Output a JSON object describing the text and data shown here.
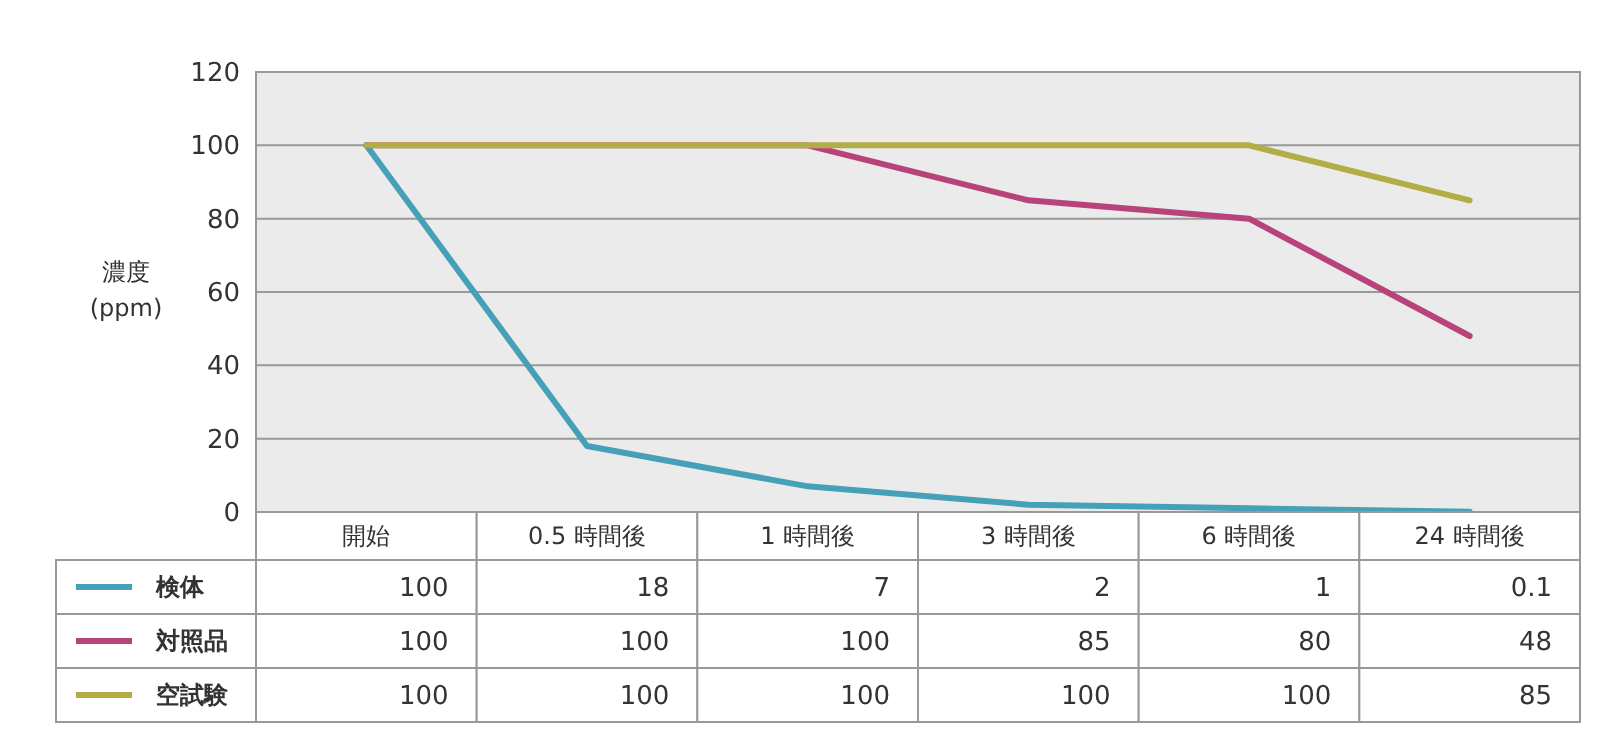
{
  "chart_data": {
    "type": "line",
    "ylabel": "濃度\n(ppm)",
    "categories": [
      "開始",
      "0.5 時間後",
      "1 時間後",
      "3 時間後",
      "6 時間後",
      "24 時間後"
    ],
    "series": [
      {
        "name": "検体",
        "color": "#45a0b8",
        "values": [
          100,
          18,
          7,
          2,
          1,
          0.1
        ]
      },
      {
        "name": "対照品",
        "color": "#b8437a",
        "values": [
          100,
          100,
          100,
          85,
          80,
          48
        ]
      },
      {
        "name": "空試験",
        "color": "#b3ad45",
        "values": [
          100,
          100,
          100,
          100,
          100,
          85
        ]
      }
    ],
    "ylim": [
      0,
      120
    ],
    "yticks": [
      0,
      20,
      40,
      60,
      80,
      100,
      120
    ],
    "grid": "y",
    "legend": "bottom",
    "data_labels": true,
    "line_style": "solid",
    "marker": "none"
  }
}
